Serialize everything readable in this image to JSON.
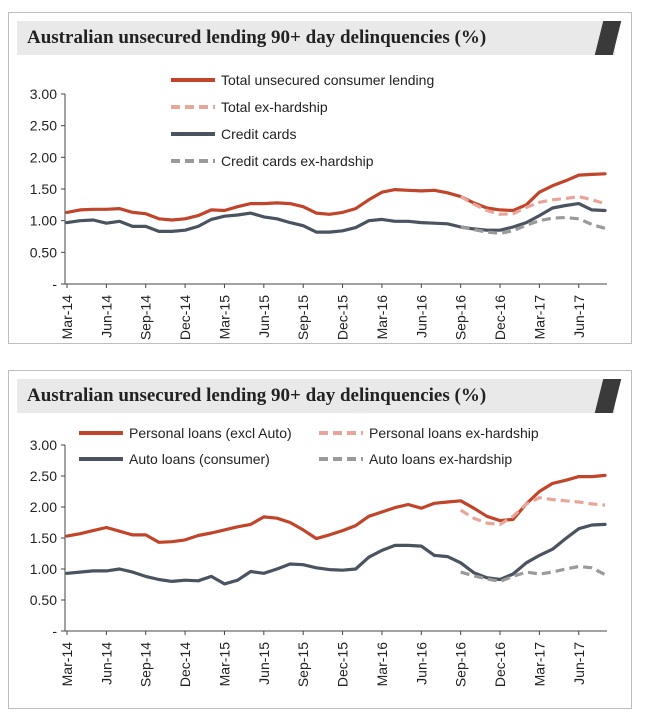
{
  "chart_data": [
    {
      "type": "line",
      "title": "Australian unsecured lending 90+ day delinquencies (%)",
      "x_tick_labels": [
        "Mar-14",
        "Jun-14",
        "Sep-14",
        "Dec-14",
        "Mar-15",
        "Jun-15",
        "Sep-15",
        "Dec-15",
        "Mar-16",
        "Jun-16",
        "Sep-16",
        "Dec-16",
        "Mar-17",
        "Jun-17"
      ],
      "y_tick_labels": [
        "-",
        "0.50",
        "1.00",
        "1.50",
        "2.00",
        "2.50",
        "3.00"
      ],
      "ylim": [
        0,
        3
      ],
      "grid": false,
      "legend_position": "top-center",
      "series": [
        {
          "name": "Total unsecured consumer lending",
          "color": "#c0452a",
          "style": "solid",
          "values": [
            1.13,
            1.17,
            1.18,
            1.18,
            1.19,
            1.13,
            1.11,
            1.03,
            1.01,
            1.03,
            1.08,
            1.17,
            1.16,
            1.22,
            1.27,
            1.27,
            1.28,
            1.27,
            1.22,
            1.12,
            1.1,
            1.13,
            1.19,
            1.33,
            1.45,
            1.49,
            1.48,
            1.47,
            1.48,
            1.44,
            1.38,
            1.28,
            1.2,
            1.17,
            1.16,
            1.25,
            1.45,
            1.55,
            1.63,
            1.72,
            1.73,
            1.74
          ]
        },
        {
          "name": "Total ex-hardship",
          "color": "#e8a69a",
          "style": "dashed",
          "values": [
            null,
            null,
            null,
            null,
            null,
            null,
            null,
            null,
            null,
            null,
            null,
            null,
            null,
            null,
            null,
            null,
            null,
            null,
            null,
            null,
            null,
            null,
            null,
            null,
            null,
            null,
            null,
            null,
            null,
            null,
            1.38,
            1.26,
            1.16,
            1.1,
            1.11,
            1.21,
            1.29,
            1.33,
            1.35,
            1.38,
            1.33,
            1.27
          ]
        },
        {
          "name": "Credit cards",
          "color": "#4a5360",
          "style": "solid",
          "values": [
            0.97,
            1.0,
            1.01,
            0.96,
            0.99,
            0.91,
            0.91,
            0.83,
            0.83,
            0.85,
            0.91,
            1.02,
            1.07,
            1.09,
            1.12,
            1.06,
            1.03,
            0.97,
            0.92,
            0.82,
            0.82,
            0.84,
            0.89,
            1.0,
            1.02,
            0.99,
            0.99,
            0.97,
            0.96,
            0.95,
            0.9,
            0.87,
            0.85,
            0.85,
            0.9,
            0.97,
            1.08,
            1.2,
            1.24,
            1.27,
            1.17,
            1.16
          ]
        },
        {
          "name": "Credit cards ex-hardship",
          "color": "#9a9a9a",
          "style": "dashed",
          "values": [
            null,
            null,
            null,
            null,
            null,
            null,
            null,
            null,
            null,
            null,
            null,
            null,
            null,
            null,
            null,
            null,
            null,
            null,
            null,
            null,
            null,
            null,
            null,
            null,
            null,
            null,
            null,
            null,
            null,
            null,
            0.9,
            0.86,
            0.82,
            0.8,
            0.84,
            0.93,
            1.0,
            1.04,
            1.05,
            1.03,
            0.94,
            0.88
          ]
        }
      ]
    },
    {
      "type": "line",
      "title": "Australian unsecured lending 90+ day delinquencies (%)",
      "x_tick_labels": [
        "Mar-14",
        "Jun-14",
        "Sep-14",
        "Dec-14",
        "Mar-15",
        "Jun-15",
        "Sep-15",
        "Dec-15",
        "Mar-16",
        "Jun-16",
        "Sep-16",
        "Dec-16",
        "Mar-17",
        "Jun-17"
      ],
      "y_tick_labels": [
        "-",
        "0.50",
        "1.00",
        "1.50",
        "2.00",
        "2.50",
        "3.00"
      ],
      "ylim": [
        0,
        3
      ],
      "grid": false,
      "legend_position": "top-center",
      "series": [
        {
          "name": "Personal loans (excl Auto)",
          "color": "#c0452a",
          "style": "solid",
          "values": [
            1.53,
            1.57,
            1.62,
            1.67,
            1.61,
            1.55,
            1.55,
            1.43,
            1.44,
            1.47,
            1.54,
            1.58,
            1.63,
            1.68,
            1.72,
            1.84,
            1.82,
            1.75,
            1.63,
            1.49,
            1.55,
            1.62,
            1.7,
            1.85,
            1.92,
            1.99,
            2.04,
            1.98,
            2.06,
            2.08,
            2.1,
            1.98,
            1.85,
            1.78,
            1.8,
            2.05,
            2.25,
            2.38,
            2.43,
            2.49,
            2.49,
            2.51
          ]
        },
        {
          "name": "Auto loans (consumer)",
          "color": "#4a5360",
          "style": "solid",
          "values": [
            0.93,
            0.95,
            0.97,
            0.97,
            1.0,
            0.95,
            0.88,
            0.83,
            0.8,
            0.82,
            0.81,
            0.88,
            0.76,
            0.82,
            0.96,
            0.93,
            1.0,
            1.08,
            1.07,
            1.02,
            0.99,
            0.98,
            1.0,
            1.19,
            1.3,
            1.38,
            1.38,
            1.37,
            1.22,
            1.2,
            1.1,
            0.94,
            0.86,
            0.83,
            0.92,
            1.1,
            1.22,
            1.32,
            1.49,
            1.65,
            1.71,
            1.72
          ]
        },
        {
          "name": "Personal loans ex-hardship",
          "color": "#e8a69a",
          "style": "dashed",
          "values": [
            null,
            null,
            null,
            null,
            null,
            null,
            null,
            null,
            null,
            null,
            null,
            null,
            null,
            null,
            null,
            null,
            null,
            null,
            null,
            null,
            null,
            null,
            null,
            null,
            null,
            null,
            null,
            null,
            null,
            null,
            1.95,
            1.82,
            1.74,
            1.72,
            1.85,
            2.05,
            2.15,
            2.12,
            2.1,
            2.08,
            2.05,
            2.03
          ]
        },
        {
          "name": "Auto loans ex-hardship",
          "color": "#9a9a9a",
          "style": "dashed",
          "values": [
            null,
            null,
            null,
            null,
            null,
            null,
            null,
            null,
            null,
            null,
            null,
            null,
            null,
            null,
            null,
            null,
            null,
            null,
            null,
            null,
            null,
            null,
            null,
            null,
            null,
            null,
            null,
            null,
            null,
            null,
            0.95,
            0.89,
            0.84,
            0.8,
            0.88,
            0.95,
            0.92,
            0.95,
            1.0,
            1.04,
            1.02,
            0.91
          ]
        }
      ]
    }
  ]
}
